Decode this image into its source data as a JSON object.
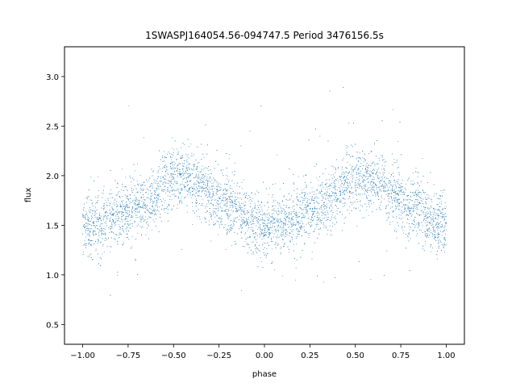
{
  "chart_data": {
    "type": "scatter",
    "title": "1SWASPJ164054.56-094747.5 Period 3476156.5s",
    "xlabel": "phase",
    "ylabel": "flux",
    "xlim": [
      -1.1,
      1.1
    ],
    "ylim": [
      0.3,
      3.3
    ],
    "xticks": [
      -1.0,
      -0.75,
      -0.5,
      -0.25,
      0.0,
      0.25,
      0.5,
      0.75,
      1.0
    ],
    "xtick_labels": [
      "−1.00",
      "−0.75",
      "−0.50",
      "−0.25",
      "0.00",
      "0.25",
      "0.50",
      "0.75",
      "1.00"
    ],
    "yticks": [
      0.5,
      1.0,
      1.5,
      2.0,
      2.5,
      3.0
    ],
    "ytick_labels": [
      "0.5",
      "1.0",
      "1.5",
      "2.0",
      "2.5",
      "3.0"
    ],
    "grid": false,
    "legend": "none",
    "color": "#1f77b4",
    "series": [
      {
        "profile_phase": [
          0.0,
          0.05,
          0.1,
          0.15,
          0.2,
          0.25,
          0.3,
          0.35,
          0.4,
          0.45,
          0.5,
          0.55,
          0.6,
          0.65,
          0.7,
          0.75,
          0.8,
          0.85,
          0.9,
          0.95,
          1.0
        ],
        "profile_flux": [
          1.5,
          1.5,
          1.5,
          1.55,
          1.6,
          1.65,
          1.7,
          1.72,
          1.8,
          1.95,
          1.98,
          1.97,
          1.95,
          1.92,
          1.8,
          1.75,
          1.72,
          1.65,
          1.55,
          1.5,
          1.5
        ],
        "scatter_sd": 0.15,
        "x_range": [
          -1.0,
          1.0
        ],
        "repeats_with_period": 1.0
      }
    ]
  }
}
